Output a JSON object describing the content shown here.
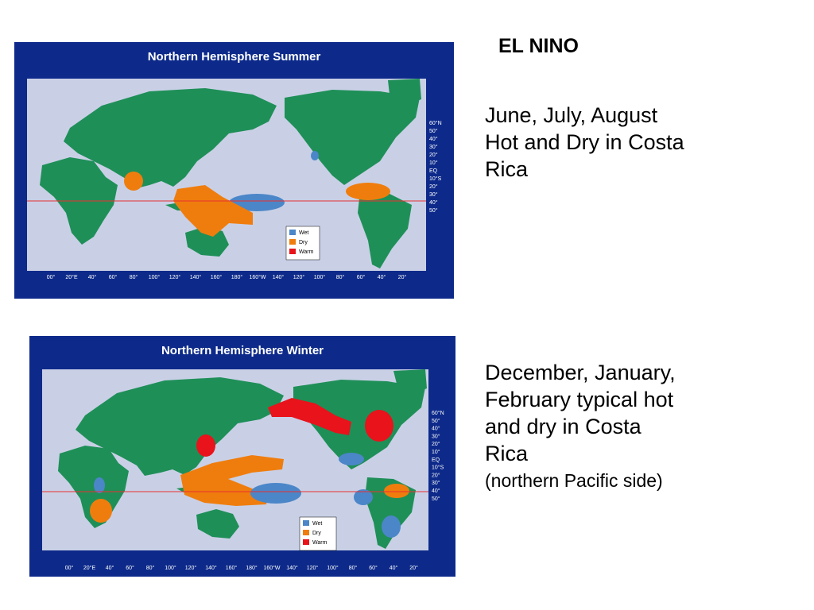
{
  "slide": {
    "title": "EL NINO"
  },
  "summer": {
    "map_title": "Northern Hemisphere Summer",
    "caption_lines": [
      "June, July, August",
      "Hot and Dry in Costa",
      "Rica"
    ]
  },
  "winter": {
    "map_title": "Northern Hemisphere Winter",
    "caption_lines": [
      "December, January,",
      "February typical hot",
      "and dry in Costa",
      "Rica"
    ],
    "caption_sub": "(northern Pacific side)"
  },
  "legend": {
    "wet": "Wet",
    "dry": "Dry",
    "warm": "Warm"
  },
  "lat_ticks": [
    "60°N",
    "50°",
    "40°",
    "30°",
    "20°",
    "10°",
    "EQ",
    "10°S",
    "20°",
    "30°",
    "40°",
    "50°"
  ],
  "lon_ticks": [
    "00°",
    "20°E",
    "40°",
    "60°",
    "80°",
    "100°",
    "120°",
    "140°",
    "160°",
    "180°",
    "160°W",
    "140°",
    "120°",
    "100°",
    "80°",
    "60°",
    "40°",
    "20°"
  ],
  "colors": {
    "frame": "#0d2a8a",
    "ocean": "#c9d0e6",
    "land": "#1f8f58",
    "wet": "#4b86c8",
    "dry": "#ef7d0d",
    "warm": "#e8131b",
    "equator": "#e83030"
  }
}
